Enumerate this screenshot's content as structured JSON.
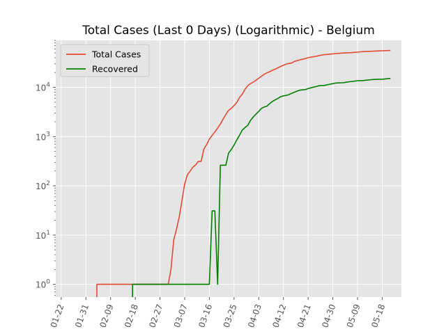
{
  "chart_data": {
    "type": "line",
    "title": "Total Cases (Last 0 Days) (Logarithmic) - Belgium",
    "xlabel": "",
    "ylabel": "",
    "yscale": "log",
    "xlim": [
      "2020-01-20",
      "2020-05-25"
    ],
    "ylim": [
      0.55,
      90000
    ],
    "grid": true,
    "legend_position": "top-left",
    "x_tick_labels": [
      "01-22",
      "01-31",
      "02-09",
      "02-18",
      "02-27",
      "03-07",
      "03-16",
      "03-25",
      "04-03",
      "04-12",
      "04-21",
      "04-30",
      "05-09",
      "05-18"
    ],
    "x_ticks": [
      "2020-01-22",
      "2020-01-31",
      "2020-02-09",
      "2020-02-18",
      "2020-02-27",
      "2020-03-07",
      "2020-03-16",
      "2020-03-25",
      "2020-04-03",
      "2020-04-12",
      "2020-04-21",
      "2020-04-30",
      "2020-05-09",
      "2020-05-18"
    ],
    "y_ticks": [
      {
        "value": 1,
        "base": "10",
        "exp": "0"
      },
      {
        "value": 10,
        "base": "10",
        "exp": "1"
      },
      {
        "value": 100,
        "base": "10",
        "exp": "2"
      },
      {
        "value": 1000,
        "base": "10",
        "exp": "3"
      },
      {
        "value": 10000,
        "base": "10",
        "exp": "4"
      }
    ],
    "series": [
      {
        "name": "Total Cases",
        "color": "#e24a33",
        "points": [
          [
            "2020-02-04",
            0.4
          ],
          [
            "2020-02-04",
            1
          ],
          [
            "2020-03-01",
            1
          ],
          [
            "2020-03-02",
            2
          ],
          [
            "2020-03-03",
            8
          ],
          [
            "2020-03-04",
            13
          ],
          [
            "2020-03-05",
            23
          ],
          [
            "2020-03-06",
            50
          ],
          [
            "2020-03-07",
            109
          ],
          [
            "2020-03-08",
            169
          ],
          [
            "2020-03-09",
            200
          ],
          [
            "2020-03-10",
            239
          ],
          [
            "2020-03-11",
            267
          ],
          [
            "2020-03-12",
            314
          ],
          [
            "2020-03-13",
            314
          ],
          [
            "2020-03-14",
            559
          ],
          [
            "2020-03-15",
            689
          ],
          [
            "2020-03-16",
            886
          ],
          [
            "2020-03-17",
            1058
          ],
          [
            "2020-03-18",
            1243
          ],
          [
            "2020-03-19",
            1486
          ],
          [
            "2020-03-20",
            1795
          ],
          [
            "2020-03-21",
            2257
          ],
          [
            "2020-03-22",
            2815
          ],
          [
            "2020-03-23",
            3401
          ],
          [
            "2020-03-24",
            3743
          ],
          [
            "2020-03-25",
            4269
          ],
          [
            "2020-03-26",
            4937
          ],
          [
            "2020-03-27",
            6235
          ],
          [
            "2020-03-28",
            7284
          ],
          [
            "2020-03-29",
            9134
          ],
          [
            "2020-03-30",
            10836
          ],
          [
            "2020-03-31",
            11899
          ],
          [
            "2020-04-01",
            12775
          ],
          [
            "2020-04-02",
            13964
          ],
          [
            "2020-04-03",
            15348
          ],
          [
            "2020-04-04",
            16770
          ],
          [
            "2020-04-05",
            18431
          ],
          [
            "2020-04-06",
            19691
          ],
          [
            "2020-04-07",
            20814
          ],
          [
            "2020-04-08",
            22194
          ],
          [
            "2020-04-09",
            23403
          ],
          [
            "2020-04-10",
            24983
          ],
          [
            "2020-04-11",
            26667
          ],
          [
            "2020-04-12",
            28018
          ],
          [
            "2020-04-13",
            29647
          ],
          [
            "2020-04-14",
            30589
          ],
          [
            "2020-04-15",
            31119
          ],
          [
            "2020-04-16",
            33573
          ],
          [
            "2020-04-17",
            34809
          ],
          [
            "2020-04-18",
            36138
          ],
          [
            "2020-04-19",
            37183
          ],
          [
            "2020-04-20",
            38496
          ],
          [
            "2020-04-21",
            39983
          ],
          [
            "2020-04-22",
            40956
          ],
          [
            "2020-04-23",
            41889
          ],
          [
            "2020-04-24",
            42797
          ],
          [
            "2020-04-25",
            44293
          ],
          [
            "2020-04-26",
            45325
          ],
          [
            "2020-04-27",
            46134
          ],
          [
            "2020-04-28",
            46687
          ],
          [
            "2020-04-29",
            47334
          ],
          [
            "2020-04-30",
            47859
          ],
          [
            "2020-05-01",
            48519
          ],
          [
            "2020-05-02",
            49032
          ],
          [
            "2020-05-03",
            49517
          ],
          [
            "2020-05-04",
            49906
          ],
          [
            "2020-05-05",
            50267
          ],
          [
            "2020-05-06",
            50509
          ],
          [
            "2020-05-07",
            50781
          ],
          [
            "2020-05-08",
            51420
          ],
          [
            "2020-05-09",
            52011
          ],
          [
            "2020-05-10",
            52596
          ],
          [
            "2020-05-11",
            53081
          ],
          [
            "2020-05-12",
            53449
          ],
          [
            "2020-05-13",
            53779
          ],
          [
            "2020-05-14",
            53981
          ],
          [
            "2020-05-15",
            54288
          ],
          [
            "2020-05-16",
            54644
          ],
          [
            "2020-05-17",
            54989
          ],
          [
            "2020-05-18",
            55280
          ],
          [
            "2020-05-19",
            55559
          ],
          [
            "2020-05-20",
            55791
          ],
          [
            "2020-05-21",
            56235
          ]
        ]
      },
      {
        "name": "Recovered",
        "color": "#008000",
        "points": [
          [
            "2020-02-17",
            0.4
          ],
          [
            "2020-02-17",
            1
          ],
          [
            "2020-03-15",
            1
          ],
          [
            "2020-03-16",
            1
          ],
          [
            "2020-03-17",
            31
          ],
          [
            "2020-03-18",
            31
          ],
          [
            "2020-03-19",
            1
          ],
          [
            "2020-03-20",
            263
          ],
          [
            "2020-03-21",
            263
          ],
          [
            "2020-03-22",
            263
          ],
          [
            "2020-03-23",
            461
          ],
          [
            "2020-03-24",
            547
          ],
          [
            "2020-03-25",
            675
          ],
          [
            "2020-03-26",
            858
          ],
          [
            "2020-03-27",
            1063
          ],
          [
            "2020-03-28",
            1359
          ],
          [
            "2020-03-29",
            1527
          ],
          [
            "2020-03-30",
            1696
          ],
          [
            "2020-03-31",
            2132
          ],
          [
            "2020-04-01",
            2495
          ],
          [
            "2020-04-02",
            2872
          ],
          [
            "2020-04-03",
            3247
          ],
          [
            "2020-04-04",
            3751
          ],
          [
            "2020-04-05",
            3986
          ],
          [
            "2020-04-06",
            4157
          ],
          [
            "2020-04-07",
            4681
          ],
          [
            "2020-04-08",
            5164
          ],
          [
            "2020-04-09",
            5568
          ],
          [
            "2020-04-10",
            5986
          ],
          [
            "2020-04-11",
            6463
          ],
          [
            "2020-04-12",
            6707
          ],
          [
            "2020-04-13",
            6868
          ],
          [
            "2020-04-14",
            7107
          ],
          [
            "2020-04-15",
            7562
          ],
          [
            "2020-04-16",
            7961
          ],
          [
            "2020-04-17",
            8386
          ],
          [
            "2020-04-18",
            8757
          ],
          [
            "2020-04-19",
            8895
          ],
          [
            "2020-04-20",
            9002
          ],
          [
            "2020-04-21",
            9433
          ],
          [
            "2020-04-22",
            9800
          ],
          [
            "2020-04-23",
            10122
          ],
          [
            "2020-04-24",
            10417
          ],
          [
            "2020-04-25",
            10785
          ],
          [
            "2020-04-26",
            10878
          ],
          [
            "2020-04-27",
            10943
          ],
          [
            "2020-04-28",
            11283
          ],
          [
            "2020-04-29",
            11576
          ],
          [
            "2020-04-30",
            11892
          ],
          [
            "2020-05-01",
            12211
          ],
          [
            "2020-05-02",
            12309
          ],
          [
            "2020-05-03",
            12378
          ],
          [
            "2020-05-04",
            12441
          ],
          [
            "2020-05-05",
            12731
          ],
          [
            "2020-05-06",
            12980
          ],
          [
            "2020-05-07",
            13201
          ],
          [
            "2020-05-08",
            13411
          ],
          [
            "2020-05-09",
            13642
          ],
          [
            "2020-05-10",
            13697
          ],
          [
            "2020-05-11",
            13732
          ],
          [
            "2020-05-12",
            13937
          ],
          [
            "2020-05-13",
            14111
          ],
          [
            "2020-05-14",
            14301
          ],
          [
            "2020-05-15",
            14460
          ],
          [
            "2020-05-16",
            14601
          ],
          [
            "2020-05-17",
            14630
          ],
          [
            "2020-05-18",
            14657
          ],
          [
            "2020-05-19",
            14847
          ],
          [
            "2020-05-20",
            14988
          ],
          [
            "2020-05-21",
            15123
          ]
        ]
      }
    ]
  }
}
